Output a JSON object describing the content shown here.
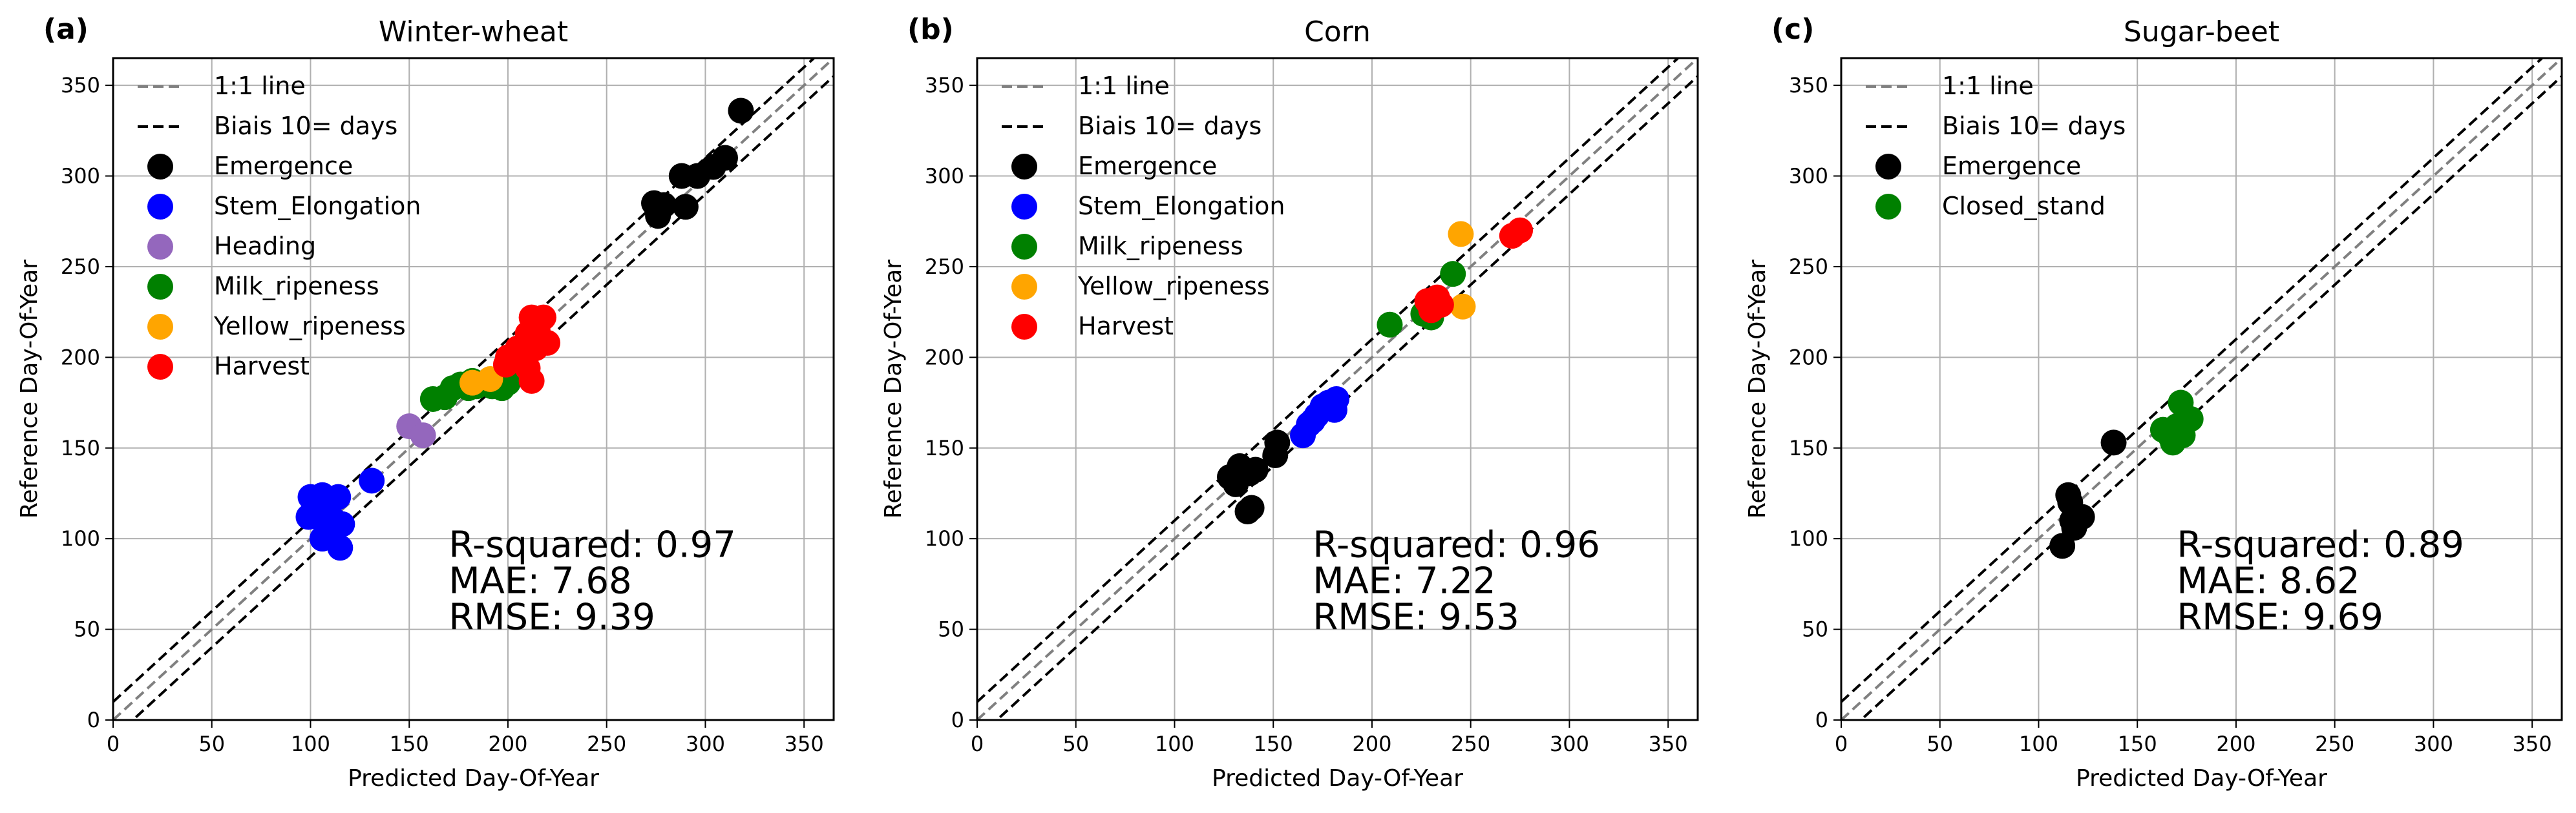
{
  "figure": {
    "line_labels": {
      "identity": "1:1 line",
      "bias": "Biais 10= days"
    },
    "colors": {
      "Emergence": "#000000",
      "Stem_Elongation": "#0000ff",
      "Heading": "#9467bd",
      "Milk_ripeness": "#008000",
      "Yellow_ripeness": "#ffa500",
      "Harvest": "#ff0000",
      "Closed_stand": "#008000",
      "identity_line": "#808080",
      "bias_line": "#000000",
      "grid": "#b0b0b0"
    }
  },
  "chart_data": [
    {
      "type": "scatter",
      "panel": "(a)",
      "title": "Winter-wheat",
      "xlabel": "Predicted Day-Of-Year",
      "ylabel": "Reference Day-Of-Year",
      "xlim": [
        0,
        365
      ],
      "ylim": [
        0,
        365
      ],
      "xticks": [
        "0",
        "50",
        "100",
        "150",
        "200",
        "250",
        "300",
        "350"
      ],
      "yticks": [
        "0",
        "50",
        "100",
        "150",
        "200",
        "250",
        "300",
        "350"
      ],
      "grid": true,
      "legend": "top-left",
      "bias_days": 10,
      "stats": {
        "r2": "R-squared: 0.97",
        "mae": "MAE: 7.68",
        "rmse": "RMSE: 9.39"
      },
      "series": [
        {
          "name": "Emergence",
          "points": [
            [
              318,
              336
            ],
            [
              310,
              310
            ],
            [
              304,
              305
            ],
            [
              288,
              300
            ],
            [
              296,
              300
            ],
            [
              274,
              285
            ],
            [
              279,
              284
            ],
            [
              290,
              283
            ],
            [
              276,
              278
            ]
          ]
        },
        {
          "name": "Stem_Elongation",
          "points": [
            [
              100,
              123
            ],
            [
              106,
              124
            ],
            [
              114,
              123
            ],
            [
              110,
              120
            ],
            [
              99,
              112
            ],
            [
              104,
              112
            ],
            [
              112,
              110
            ],
            [
              116,
              108
            ],
            [
              108,
              104
            ],
            [
              106,
              100
            ],
            [
              115,
              95
            ],
            [
              131,
              132
            ]
          ]
        },
        {
          "name": "Heading",
          "points": [
            [
              150,
              162
            ],
            [
              157,
              157
            ]
          ]
        },
        {
          "name": "Milk_ripeness",
          "points": [
            [
              162,
              177
            ],
            [
              168,
              178
            ],
            [
              172,
              183
            ],
            [
              176,
              185
            ],
            [
              180,
              183
            ],
            [
              184,
              184
            ],
            [
              188,
              186
            ],
            [
              192,
              184
            ],
            [
              197,
              183
            ],
            [
              182,
              187
            ],
            [
              200,
              186
            ]
          ]
        },
        {
          "name": "Yellow_ripeness",
          "points": [
            [
              182,
              186
            ],
            [
              191,
              188
            ]
          ]
        },
        {
          "name": "Harvest",
          "points": [
            [
              212,
              222
            ],
            [
              218,
              222
            ],
            [
              210,
              213
            ],
            [
              215,
              215
            ],
            [
              220,
              208
            ],
            [
              214,
              205
            ],
            [
              205,
              205
            ],
            [
              200,
              200
            ],
            [
              208,
              198
            ],
            [
              212,
              187
            ],
            [
              199,
              196
            ],
            [
              210,
              194
            ]
          ]
        }
      ]
    },
    {
      "type": "scatter",
      "panel": "(b)",
      "title": "Corn",
      "xlabel": "Predicted Day-Of-Year",
      "ylabel": "Reference Day-Of-Year",
      "xlim": [
        0,
        365
      ],
      "ylim": [
        0,
        365
      ],
      "xticks": [
        "0",
        "50",
        "100",
        "150",
        "200",
        "250",
        "300",
        "350"
      ],
      "yticks": [
        "0",
        "50",
        "100",
        "150",
        "200",
        "250",
        "300",
        "350"
      ],
      "grid": true,
      "legend": "top-left",
      "bias_days": 10,
      "stats": {
        "r2": "R-squared: 0.96",
        "mae": "MAE: 7.22",
        "rmse": "RMSE: 9.53"
      },
      "series": [
        {
          "name": "Emergence",
          "points": [
            [
              128,
              134
            ],
            [
              133,
              140
            ],
            [
              131,
              130
            ],
            [
              138,
              136
            ],
            [
              141,
              138
            ],
            [
              151,
              146
            ],
            [
              152,
              153
            ],
            [
              137,
              115
            ],
            [
              139,
              117
            ]
          ]
        },
        {
          "name": "Stem_Elongation",
          "points": [
            [
              165,
              157
            ],
            [
              168,
              163
            ],
            [
              172,
              168
            ],
            [
              175,
              173
            ],
            [
              178,
              175
            ],
            [
              182,
              177
            ],
            [
              181,
              171
            ],
            [
              170,
              165
            ]
          ]
        },
        {
          "name": "Milk_ripeness",
          "points": [
            [
              209,
              218
            ],
            [
              226,
              224
            ],
            [
              230,
              222
            ],
            [
              241,
              246
            ],
            [
              232,
              229
            ]
          ]
        },
        {
          "name": "Yellow_ripeness",
          "points": [
            [
              245,
              268
            ],
            [
              246,
              228
            ]
          ]
        },
        {
          "name": "Harvest",
          "points": [
            [
              228,
              231
            ],
            [
              233,
              233
            ],
            [
              235,
              229
            ],
            [
              230,
              226
            ],
            [
              271,
              267
            ],
            [
              275,
              270
            ]
          ]
        }
      ]
    },
    {
      "type": "scatter",
      "panel": "(c)",
      "title": "Sugar-beet",
      "xlabel": "Predicted Day-Of-Year",
      "ylabel": "Reference Day-Of-Year",
      "xlim": [
        0,
        365
      ],
      "ylim": [
        0,
        365
      ],
      "xticks": [
        "0",
        "50",
        "100",
        "150",
        "200",
        "250",
        "300",
        "350"
      ],
      "yticks": [
        "0",
        "50",
        "100",
        "150",
        "200",
        "250",
        "300",
        "350"
      ],
      "grid": true,
      "legend": "top-left",
      "bias_days": 10,
      "stats": {
        "r2": "R-squared: 0.89",
        "mae": "MAE: 8.62",
        "rmse": "RMSE: 9.69"
      },
      "series": [
        {
          "name": "Emergence",
          "points": [
            [
              138,
              153
            ],
            [
              115,
              124
            ],
            [
              116,
              120
            ],
            [
              117,
              110
            ],
            [
              122,
              112
            ],
            [
              112,
              96
            ],
            [
              118,
              106
            ]
          ]
        },
        {
          "name": "Closed_stand",
          "points": [
            [
              163,
              160
            ],
            [
              167,
              156
            ],
            [
              170,
              162
            ],
            [
              173,
              157
            ],
            [
              172,
              175
            ],
            [
              177,
              166
            ],
            [
              168,
              153
            ]
          ]
        }
      ]
    }
  ]
}
